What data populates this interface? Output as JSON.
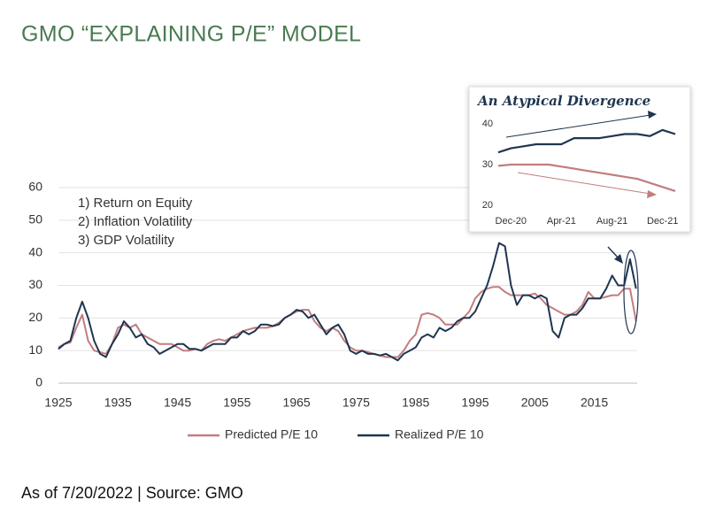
{
  "chart_data": [
    {
      "type": "line",
      "title": "GMO “EXPLAINING P/E” MODEL",
      "annotations": [
        "1) Return on Equity",
        "2) Inflation Volatility",
        "3) GDP Volatility"
      ],
      "note": "As of 7/20/2022 | Source: GMO",
      "x": [
        1925,
        1926,
        1927,
        1928,
        1929,
        1930,
        1931,
        1932,
        1933,
        1934,
        1935,
        1936,
        1937,
        1938,
        1939,
        1940,
        1941,
        1942,
        1943,
        1944,
        1945,
        1946,
        1947,
        1948,
        1949,
        1950,
        1951,
        1952,
        1953,
        1954,
        1955,
        1956,
        1957,
        1958,
        1959,
        1960,
        1961,
        1962,
        1963,
        1964,
        1965,
        1966,
        1967,
        1968,
        1969,
        1970,
        1971,
        1972,
        1973,
        1974,
        1975,
        1976,
        1977,
        1978,
        1979,
        1980,
        1981,
        1982,
        1983,
        1984,
        1985,
        1986,
        1987,
        1988,
        1989,
        1990,
        1991,
        1992,
        1993,
        1994,
        1995,
        1996,
        1997,
        1998,
        1999,
        2000,
        2001,
        2002,
        2003,
        2004,
        2005,
        2006,
        2007,
        2008,
        2009,
        2010,
        2011,
        2012,
        2013,
        2014,
        2015,
        2016,
        2017,
        2018,
        2019,
        2020,
        2021,
        2022
      ],
      "series": [
        {
          "name": "Predicted P/E 10",
          "color": "#c27d7e",
          "values": [
            11,
            12,
            12.5,
            17,
            21,
            13,
            10,
            9.5,
            9,
            12,
            17,
            18,
            17,
            18,
            15,
            14,
            13,
            12,
            12,
            12,
            11,
            10,
            10,
            10.5,
            10,
            12,
            13,
            13.5,
            13,
            14,
            15,
            16,
            16.5,
            17,
            17,
            17,
            17.5,
            18.5,
            20,
            21,
            22,
            22.5,
            22.5,
            19,
            17,
            16,
            17,
            16,
            13,
            11,
            10,
            10,
            9.5,
            9,
            8.5,
            8,
            8,
            8,
            10,
            13,
            15,
            21,
            21.5,
            21,
            20,
            18,
            18,
            18,
            20,
            22,
            26,
            28,
            29,
            29.5,
            29.5,
            28,
            27,
            27,
            27,
            27,
            27.5,
            26,
            24,
            23,
            22,
            21,
            21,
            22,
            24,
            28,
            26,
            26,
            26.5,
            27,
            27,
            29,
            29,
            19
          ]
        },
        {
          "name": "Realized P/E 10",
          "color": "#1f3550",
          "values": [
            10.5,
            12,
            13,
            20,
            25,
            20,
            13,
            9,
            8,
            12,
            15,
            19,
            17,
            14,
            15,
            12,
            11,
            9,
            10,
            11,
            12,
            12,
            10.5,
            10.5,
            10,
            11,
            12,
            12,
            12,
            14,
            14,
            16,
            15,
            16,
            18,
            18,
            17.5,
            18,
            20,
            21,
            22.5,
            22,
            20,
            21,
            18,
            15,
            17,
            18,
            15,
            10,
            9,
            10,
            9,
            9,
            8.5,
            9,
            8,
            7,
            9,
            10,
            11,
            14,
            15,
            14,
            17,
            16,
            17,
            19,
            20,
            20,
            22,
            26,
            30,
            36,
            43,
            42,
            30,
            24,
            27,
            27,
            26,
            27,
            26,
            16,
            14,
            20,
            21,
            21,
            23,
            26,
            26,
            26,
            29,
            33,
            30,
            30,
            38,
            29
          ]
        }
      ],
      "xlim": [
        1925,
        2022.2
      ],
      "xticks": [
        1925,
        1935,
        1945,
        1955,
        1965,
        1975,
        1985,
        1995,
        2005,
        2015
      ],
      "ylim": [
        0,
        60
      ],
      "yticks": [
        0,
        10,
        20,
        30,
        40,
        50,
        60
      ],
      "grid": true,
      "legend": "bottom"
    },
    {
      "type": "line",
      "title": "An Atypical Divergence",
      "categories": [
        null,
        "Dec-20",
        null,
        null,
        null,
        "Apr-21",
        null,
        null,
        null,
        "Aug-21",
        null,
        null,
        null,
        "Dec-21",
        null
      ],
      "series": [
        {
          "name": "Predicted P/E 10",
          "color": "#c27d7e",
          "values": [
            29.7,
            30,
            30,
            30,
            30,
            29.5,
            29,
            28.5,
            28,
            27.5,
            27,
            26.5,
            25.5,
            24.5,
            23.5
          ]
        },
        {
          "name": "Realized P/E 10",
          "color": "#1f3550",
          "values": [
            33,
            34,
            34.5,
            35,
            35,
            35,
            36.5,
            36.5,
            36.5,
            37,
            37.5,
            37.5,
            37,
            38.5,
            37.5
          ]
        }
      ],
      "ylim": [
        20,
        40
      ],
      "yticks": [
        20,
        30,
        40
      ],
      "grid": false
    }
  ]
}
